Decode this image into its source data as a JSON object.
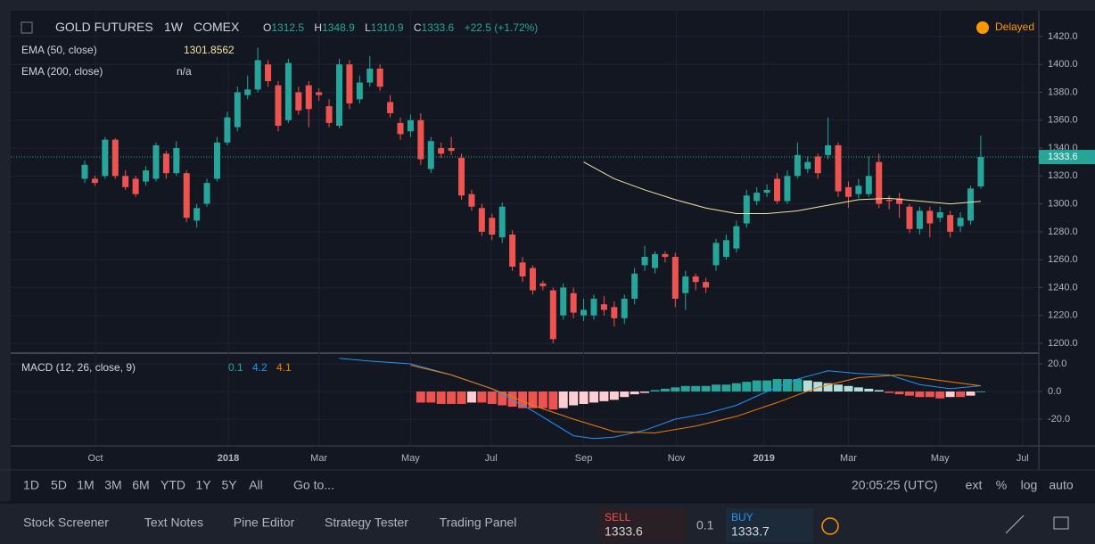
{
  "header": {
    "symbol": "GOLD FUTURES",
    "interval": "1W",
    "exchange": "COMEX",
    "o": "O",
    "h": "H",
    "l": "L",
    "c": "C",
    "change": "+22.5 (+1.72%)",
    "status": "Delayed"
  },
  "chart_data": [
    {
      "type": "candlestick",
      "up_color": "#26a69a",
      "down_color": "#ef5350",
      "open": [
        1318,
        1318,
        1320,
        1346,
        1320,
        1318,
        1316,
        1318,
        1336,
        1322,
        1322,
        1288,
        1300,
        1318,
        1344,
        1355,
        1378,
        1382,
        1400,
        1385,
        1360,
        1380,
        1385,
        1380,
        1370,
        1356,
        1400,
        1375,
        1387,
        1397,
        1373,
        1358,
        1352,
        1360,
        1325,
        1340,
        1340,
        1333,
        1307,
        1297,
        1290,
        1276,
        1278,
        1258,
        1254,
        1243,
        1238,
        1220,
        1236,
        1220,
        1220,
        1228,
        1226,
        1218,
        1232,
        1256,
        1254,
        1264,
        1262,
        1236,
        1248,
        1244,
        1256,
        1262,
        1268,
        1286,
        1302,
        1308,
        1318,
        1302,
        1320,
        1325,
        1334,
        1335,
        1342,
        1312,
        1307,
        1307,
        1330,
        1303,
        1304,
        1298,
        1282,
        1295,
        1290,
        1292,
        1284,
        1288,
        1312.5
      ],
      "high": [
        1331,
        1320,
        1348,
        1347,
        1324,
        1320,
        1327,
        1344,
        1338,
        1345,
        1324,
        1300,
        1318,
        1348,
        1366,
        1384,
        1392,
        1412,
        1403,
        1388,
        1404,
        1384,
        1388,
        1383,
        1375,
        1404,
        1403,
        1392,
        1406,
        1400,
        1378,
        1362,
        1364,
        1365,
        1348,
        1344,
        1348,
        1336,
        1310,
        1300,
        1293,
        1301,
        1281,
        1262,
        1256,
        1245,
        1240,
        1243,
        1240,
        1232,
        1235,
        1234,
        1230,
        1235,
        1254,
        1270,
        1266,
        1266,
        1265,
        1252,
        1250,
        1247,
        1275,
        1278,
        1288,
        1310,
        1312,
        1314,
        1322,
        1324,
        1344,
        1334,
        1336,
        1362,
        1344,
        1316,
        1318,
        1334,
        1336,
        1306,
        1308,
        1300,
        1298,
        1298,
        1298,
        1295,
        1294,
        1313,
        1348.9
      ],
      "low": [
        1315,
        1313,
        1318,
        1318,
        1310,
        1305,
        1313,
        1316,
        1318,
        1320,
        1287,
        1283,
        1298,
        1316,
        1342,
        1352,
        1375,
        1380,
        1384,
        1352,
        1358,
        1364,
        1355,
        1374,
        1355,
        1354,
        1368,
        1372,
        1384,
        1381,
        1362,
        1346,
        1348,
        1328,
        1322,
        1333,
        1335,
        1303,
        1295,
        1277,
        1274,
        1272,
        1252,
        1244,
        1235,
        1238,
        1200,
        1217,
        1218,
        1216,
        1217,
        1220,
        1212,
        1214,
        1228,
        1252,
        1250,
        1258,
        1226,
        1224,
        1238,
        1236,
        1252,
        1260,
        1265,
        1283,
        1299,
        1305,
        1300,
        1300,
        1318,
        1322,
        1318,
        1332,
        1305,
        1297,
        1304,
        1305,
        1297,
        1296,
        1290,
        1279,
        1278,
        1276,
        1287,
        1276,
        1280,
        1285,
        1310.9
      ],
      "close": [
        1328,
        1315,
        1346,
        1320,
        1312,
        1307,
        1324,
        1342,
        1322,
        1340,
        1290,
        1297,
        1315,
        1344,
        1362,
        1380,
        1382,
        1403,
        1388,
        1356,
        1401,
        1367,
        1368,
        1378,
        1358,
        1400,
        1372,
        1387,
        1397,
        1384,
        1365,
        1350,
        1360,
        1332,
        1345,
        1336,
        1338,
        1306,
        1298,
        1280,
        1278,
        1298,
        1255,
        1248,
        1238,
        1241,
        1203,
        1240,
        1222,
        1224,
        1232,
        1224,
        1218,
        1232,
        1250,
        1262,
        1264,
        1262,
        1232,
        1248,
        1244,
        1240,
        1272,
        1274,
        1284,
        1306,
        1308,
        1310,
        1302,
        1320,
        1335,
        1330,
        1322,
        1342,
        1309,
        1305,
        1313,
        1320,
        1300,
        1302,
        1300,
        1282,
        1295,
        1286,
        1294,
        1280,
        1290,
        1311,
        1333.6
      ],
      "series": [
        {
          "name": "EMA (50, close)",
          "color": "#f3e3a0",
          "x": [
            49,
            52,
            55,
            58,
            61,
            64,
            67,
            70,
            73,
            76,
            79,
            82,
            85,
            88
          ],
          "values": [
            1330,
            1318,
            1310,
            1303,
            1297,
            1293,
            1293,
            1295,
            1299,
            1303,
            1304,
            1302,
            1300,
            1301.8562
          ]
        },
        {
          "name": "EMA (200, close)",
          "status": "n/a"
        }
      ],
      "xlim": [
        -7.27,
        93.7
      ],
      "ylim": [
        1193.6,
        1438.5
      ],
      "yticks": [
        {
          "value": 1200,
          "label": "1200.0"
        },
        {
          "value": 1220,
          "label": "1220.0"
        },
        {
          "value": 1240,
          "label": "1240.0"
        },
        {
          "value": 1260,
          "label": "1260.0"
        },
        {
          "value": 1280,
          "label": "1280.0"
        },
        {
          "value": 1300,
          "label": "1300.0"
        },
        {
          "value": 1320,
          "label": "1320.0"
        },
        {
          "value": 1340,
          "label": "1340.0"
        },
        {
          "value": 1360,
          "label": "1360.0"
        },
        {
          "value": 1380,
          "label": "1380.0"
        },
        {
          "value": 1400,
          "label": "1400.0"
        },
        {
          "value": 1420,
          "label": "1420.0"
        }
      ],
      "xticks": [
        {
          "value": 1.05,
          "label": "Oct"
        },
        {
          "value": 14.1,
          "label": "2018"
        },
        {
          "value": 23,
          "label": "Mar"
        },
        {
          "value": 32,
          "label": "May"
        },
        {
          "value": 39.9,
          "label": "Jul"
        },
        {
          "value": 49,
          "label": "Sep"
        },
        {
          "value": 58.1,
          "label": "Nov"
        },
        {
          "value": 66.7,
          "label": "2019"
        },
        {
          "value": 75,
          "label": "Mar"
        },
        {
          "value": 84,
          "label": "May"
        },
        {
          "value": 92.1,
          "label": "Jul"
        }
      ],
      "grid": true
    },
    {
      "type": "macd",
      "title": "MACD (12, 26, close, 9)",
      "histogram": {
        "x": [
          33,
          34,
          35,
          36,
          37,
          38,
          39,
          40,
          41,
          42,
          43,
          44,
          45,
          46,
          47,
          48,
          49,
          50,
          51,
          52,
          53,
          54,
          55,
          56,
          57,
          58,
          59,
          60,
          61,
          62,
          63,
          64,
          65,
          66,
          67,
          68,
          69,
          70,
          71,
          72,
          73,
          74,
          75,
          76,
          77,
          78,
          79,
          80,
          81,
          82,
          83,
          84,
          85,
          86,
          87,
          88
        ],
        "values": [
          -8,
          -8,
          -9,
          -9,
          -9,
          -8,
          -8,
          -9,
          -10,
          -11,
          -12,
          -12,
          -12,
          -13,
          -12,
          -10,
          -9,
          -8,
          -7,
          -6,
          -4,
          -2,
          -1,
          1,
          2,
          3,
          4,
          4,
          4,
          5,
          5,
          6,
          7,
          8,
          8,
          9,
          9,
          9,
          8,
          7,
          6,
          5,
          4,
          3,
          2,
          1,
          -1,
          -2,
          -3,
          -4,
          -4,
          -5,
          -4,
          -4,
          -3,
          0.1
        ],
        "up_color": "#26a69a",
        "up_light": "#b2dfdb",
        "down_color": "#ef5350",
        "down_light": "#ffcdd2"
      },
      "macd": {
        "color": "#2196f3",
        "x": [
          25,
          28,
          32,
          36,
          40,
          44,
          48,
          50,
          52,
          55,
          58,
          61,
          64,
          67,
          70,
          73,
          76,
          79,
          82,
          85,
          88
        ],
        "values": [
          24,
          22,
          20,
          12,
          2,
          -14,
          -32,
          -34,
          -33,
          -28,
          -20,
          -16,
          -10,
          0,
          9,
          15,
          13,
          12,
          5,
          2,
          4.2
        ]
      },
      "signal": {
        "color": "#f57c00",
        "x": [
          32,
          36,
          40,
          44,
          48,
          52,
          56,
          60,
          64,
          68,
          72,
          76,
          80,
          84,
          88
        ],
        "values": [
          19,
          12,
          2,
          -10,
          -20,
          -29,
          -30,
          -25,
          -18,
          -8,
          3,
          10,
          12,
          8,
          4.1
        ]
      },
      "xlim": [
        -7.27,
        93.7
      ],
      "ylim": [
        -38.7,
        27.1
      ],
      "yticks": [
        {
          "value": 20,
          "label": "20.0"
        },
        {
          "value": 0,
          "label": "0.0"
        },
        {
          "value": -20,
          "label": "-20.0"
        }
      ],
      "grid": true
    }
  ],
  "toolbar": {
    "ranges": [
      "1D",
      "5D",
      "1M",
      "3M",
      "6M",
      "YTD",
      "1Y",
      "5Y",
      "All"
    ],
    "goto": "Go to...",
    "time": "20:05:25 (UTC)",
    "options": [
      "ext",
      "%",
      "log",
      "auto"
    ]
  },
  "tabs": [
    "Stock Screener",
    "Text Notes",
    "Pine Editor",
    "Strategy Tester",
    "Trading Panel"
  ],
  "trade": {
    "sell_label": "SELL",
    "sell": "1333.6",
    "qty": "0.1",
    "buy_label": "BUY",
    "buy": "1333.7"
  }
}
